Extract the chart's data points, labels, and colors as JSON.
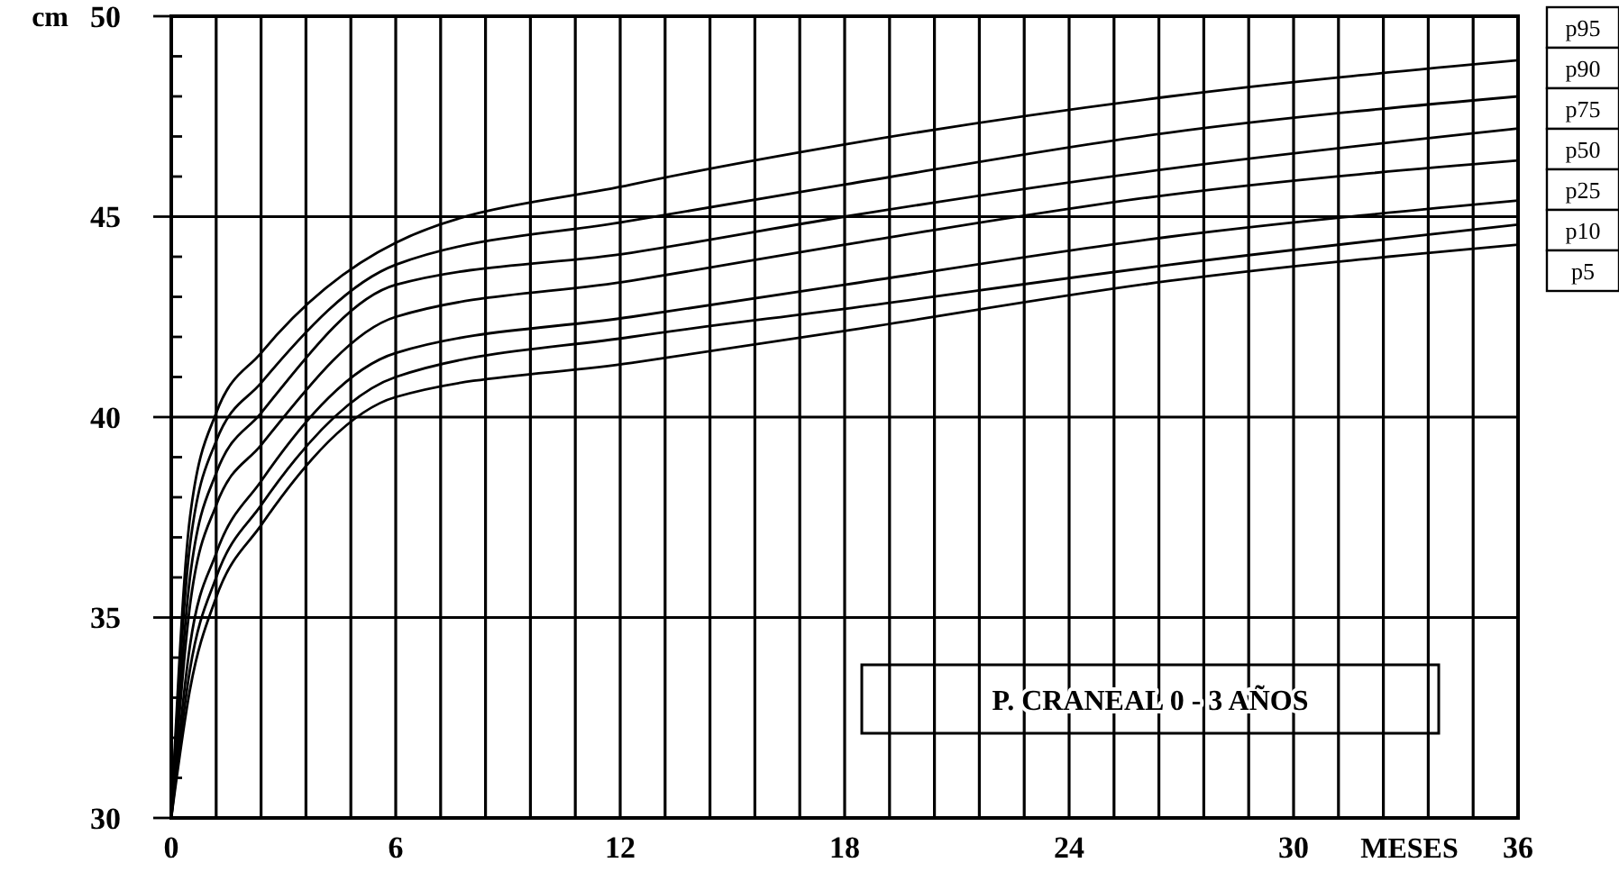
{
  "chart_data": {
    "type": "line",
    "title": "P.  CRANEAL 0 - 3 AÑOS",
    "xlabel": "MESES",
    "ylabel": "cm",
    "x": [
      0,
      0.5,
      1.2,
      2.4,
      6,
      12.3,
      18,
      26.7,
      36
    ],
    "series": [
      {
        "name": "p95",
        "color": "#000000",
        "values": [
          30,
          37.5,
          40.1,
          41.6,
          44.35,
          45.8,
          46.8,
          48.0,
          48.9
        ]
      },
      {
        "name": "p90",
        "color": "#000000",
        "values": [
          30,
          36.8,
          39.4,
          40.85,
          43.8,
          44.9,
          45.8,
          47.1,
          48.0
        ]
      },
      {
        "name": "p75",
        "color": "#000000",
        "values": [
          30,
          36.0,
          38.6,
          40.1,
          43.3,
          44.1,
          45.0,
          46.2,
          47.2
        ]
      },
      {
        "name": "p50",
        "color": "#000000",
        "values": [
          30,
          35.3,
          37.8,
          39.3,
          42.5,
          43.4,
          44.3,
          45.55,
          46.4
        ]
      },
      {
        "name": "p25",
        "color": "#000000",
        "values": [
          30,
          34.3,
          36.6,
          38.4,
          41.6,
          42.5,
          43.3,
          44.5,
          45.4
        ]
      },
      {
        "name": "p10",
        "color": "#000000",
        "values": [
          30,
          33.7,
          36.0,
          37.8,
          41.0,
          42.0,
          42.7,
          43.8,
          44.8
        ]
      },
      {
        "name": "p5",
        "color": "#000000",
        "values": [
          30,
          33.2,
          35.5,
          37.3,
          40.5,
          41.35,
          42.15,
          43.4,
          44.3
        ]
      }
    ],
    "xlim": [
      0,
      36
    ],
    "xticks": [
      0,
      {
        "value": 1.2,
        "label": null
      },
      {
        "value": 2.4,
        "label": null
      },
      {
        "value": 3.6,
        "label": null
      },
      {
        "value": 4.8,
        "label": null
      },
      6,
      {
        "value": 7.2,
        "label": null
      },
      {
        "value": 8.4,
        "label": null
      },
      {
        "value": 9.6,
        "label": null
      },
      {
        "value": 10.8,
        "label": null
      },
      12,
      {
        "value": 13.2,
        "label": null
      },
      {
        "value": 14.4,
        "label": null
      },
      {
        "value": 15.6,
        "label": null
      },
      {
        "value": 16.8,
        "label": null
      },
      18,
      {
        "value": 19.2,
        "label": null
      },
      {
        "value": 20.4,
        "label": null
      },
      {
        "value": 21.6,
        "label": null
      },
      {
        "value": 22.8,
        "label": null
      },
      24,
      {
        "value": 25.2,
        "label": null
      },
      {
        "value": 26.4,
        "label": null
      },
      {
        "value": 27.6,
        "label": null
      },
      {
        "value": 28.8,
        "label": null
      },
      30,
      {
        "value": 31.2,
        "label": null
      },
      {
        "value": 32.4,
        "label": null
      },
      {
        "value": 33.6,
        "label": null
      },
      {
        "value": 34.8,
        "label": null
      },
      36
    ],
    "ylim": [
      30,
      50
    ],
    "yticks": [
      30,
      {
        "value": 31,
        "label": null
      },
      {
        "value": 32,
        "label": null
      },
      {
        "value": 33,
        "label": null
      },
      {
        "value": 34,
        "label": null
      },
      35,
      {
        "value": 36,
        "label": null
      },
      {
        "value": 37,
        "label": null
      },
      {
        "value": 38,
        "label": null
      },
      {
        "value": 39,
        "label": null
      },
      40,
      {
        "value": 41,
        "label": null
      },
      {
        "value": 42,
        "label": null
      },
      {
        "value": 43,
        "label": null
      },
      {
        "value": 44,
        "label": null
      },
      45,
      {
        "value": 46,
        "label": null
      },
      {
        "value": 47,
        "label": null
      },
      {
        "value": 48,
        "label": null
      },
      {
        "value": 49,
        "label": null
      },
      50
    ],
    "grid": true,
    "legend": "right",
    "marker": "none",
    "line_style": "solid"
  }
}
